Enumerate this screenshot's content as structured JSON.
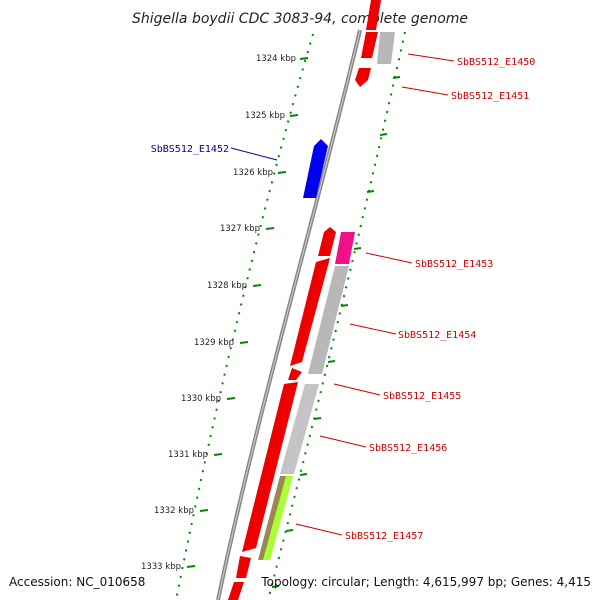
{
  "title": "Shigella boydii CDC 3083-94, complete genome",
  "footer": {
    "accession": "Accession: NC_010658",
    "topology": "Topology: circular; Length: 4,615,997 bp; Genes: 4,415"
  },
  "colors": {
    "forward_gene": "#ee0000",
    "reverse_gene": "#0000ee",
    "gene_label_forward": "#cc0000",
    "gene_label_reverse": "#000099",
    "pseudo": "#b8b8b8",
    "magenta": "#ee1188",
    "lime": "#aaff33",
    "olive": "#998855",
    "tick": "#008800",
    "backbone": "#888888"
  },
  "ticks": [
    {
      "label": "1324 kbp"
    },
    {
      "label": "1325 kbp"
    },
    {
      "label": "1326 kbp"
    },
    {
      "label": "1327 kbp"
    },
    {
      "label": "1328 kbp"
    },
    {
      "label": "1329 kbp"
    },
    {
      "label": "1330 kbp"
    },
    {
      "label": "1331 kbp"
    },
    {
      "label": "1332 kbp"
    },
    {
      "label": "1333 kbp"
    }
  ],
  "genes": [
    {
      "name": "SbBS512_E1450",
      "color": "forward"
    },
    {
      "name": "SbBS512_E1451",
      "color": "forward"
    },
    {
      "name": "SbBS512_E1452",
      "color": "reverse"
    },
    {
      "name": "SbBS512_E1453",
      "color": "forward"
    },
    {
      "name": "SbBS512_E1454",
      "color": "forward"
    },
    {
      "name": "SbBS512_E1455",
      "color": "forward"
    },
    {
      "name": "SbBS512_E1456",
      "color": "forward"
    },
    {
      "name": "SbBS512_E1457",
      "color": "forward"
    }
  ]
}
